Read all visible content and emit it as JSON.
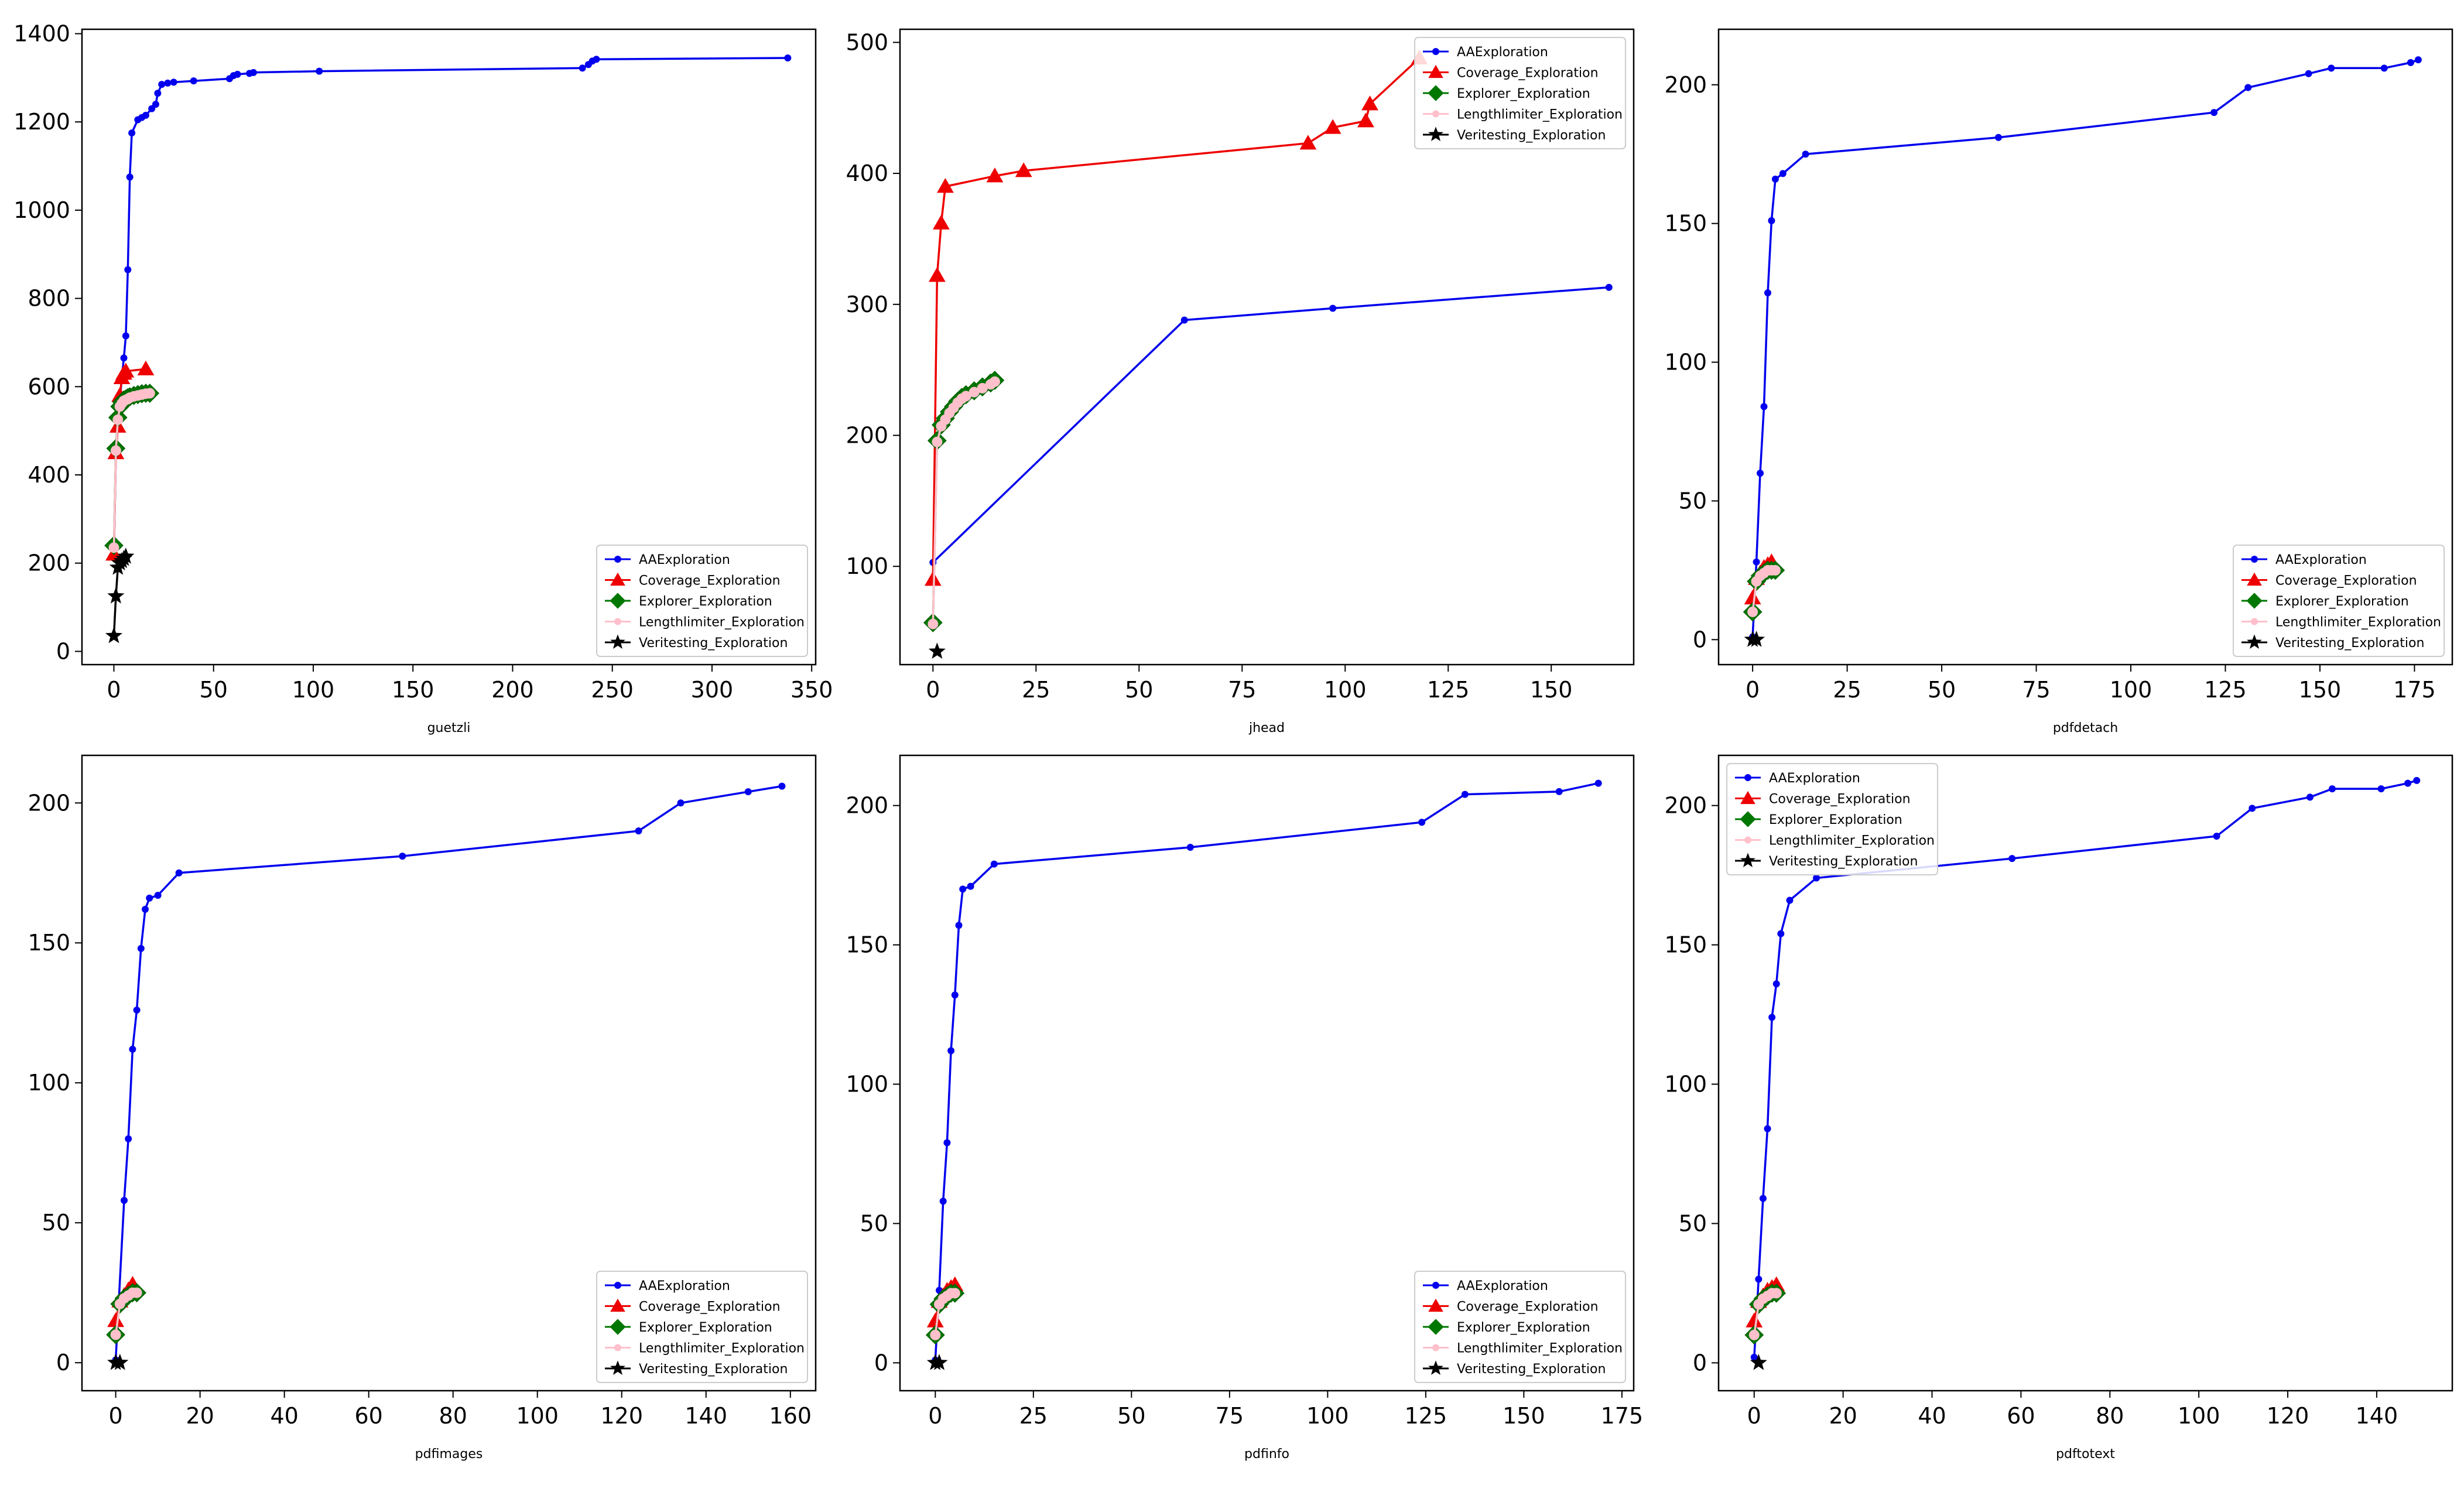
{
  "chart_data": [
    {
      "type": "line",
      "xlabel": "guetzli",
      "xlim": [
        -16,
        352
      ],
      "ylim": [
        -30,
        1410
      ],
      "xticks": [
        0,
        50,
        100,
        150,
        200,
        250,
        300,
        350
      ],
      "yticks": [
        0,
        200,
        400,
        600,
        800,
        1000,
        1200,
        1400
      ],
      "legend_loc": "lower-right",
      "series": [
        {
          "name": "AAExploration",
          "color": "#0000ee",
          "marker": "circle",
          "x": [
            0,
            1,
            2,
            3,
            4,
            5,
            6,
            7,
            8,
            9,
            12,
            14,
            16,
            19,
            21,
            22,
            24,
            27,
            30,
            40,
            58,
            60,
            62,
            68,
            70,
            103,
            235,
            238,
            240,
            242,
            338
          ],
          "y": [
            220,
            450,
            520,
            570,
            620,
            665,
            715,
            865,
            1075,
            1175,
            1205,
            1210,
            1215,
            1230,
            1240,
            1265,
            1285,
            1288,
            1290,
            1293,
            1298,
            1305,
            1308,
            1310,
            1312,
            1315,
            1322,
            1330,
            1338,
            1342,
            1345
          ]
        },
        {
          "name": "Coverage_Exploration",
          "color": "#ee0000",
          "marker": "triangle",
          "x": [
            0,
            1,
            2,
            3,
            4,
            5,
            6,
            16
          ],
          "y": [
            220,
            450,
            510,
            580,
            620,
            630,
            635,
            640
          ]
        },
        {
          "name": "Explorer_Exploration",
          "color": "#007700",
          "marker": "diamond",
          "x": [
            0,
            1,
            2,
            3,
            4,
            5,
            6,
            7,
            8,
            10,
            12,
            14,
            16,
            18
          ],
          "y": [
            240,
            460,
            530,
            555,
            565,
            570,
            572,
            575,
            577,
            580,
            582,
            584,
            585,
            585
          ]
        },
        {
          "name": "Lengthlimiter_Exploration",
          "color": "#ffc0cb",
          "marker": "circle",
          "x": [
            0,
            1,
            2,
            3,
            4,
            5,
            6,
            7,
            8,
            10,
            12,
            14,
            16,
            18
          ],
          "y": [
            235,
            455,
            525,
            555,
            562,
            568,
            570,
            572,
            575,
            578,
            580,
            582,
            584,
            585
          ]
        },
        {
          "name": "Veritesting_Exploration",
          "color": "#000000",
          "marker": "star",
          "x": [
            0,
            1,
            2,
            3,
            4,
            5,
            6
          ],
          "y": [
            35,
            125,
            190,
            200,
            205,
            210,
            215
          ]
        }
      ]
    },
    {
      "type": "line",
      "xlabel": "jhead",
      "xlim": [
        -8,
        170
      ],
      "ylim": [
        25,
        510
      ],
      "xticks": [
        0,
        25,
        50,
        75,
        100,
        125,
        150
      ],
      "yticks": [
        100,
        200,
        300,
        400,
        500
      ],
      "legend_loc": "upper-right",
      "series": [
        {
          "name": "AAExploration",
          "color": "#0000ee",
          "marker": "circle",
          "x": [
            0,
            61,
            97,
            164
          ],
          "y": [
            103,
            288,
            297,
            313
          ]
        },
        {
          "name": "Coverage_Exploration",
          "color": "#ee0000",
          "marker": "triangle",
          "x": [
            0,
            1,
            2,
            3,
            15,
            22,
            91,
            97,
            105,
            106,
            118
          ],
          "y": [
            90,
            322,
            362,
            390,
            398,
            402,
            423,
            435,
            440,
            453,
            488
          ]
        },
        {
          "name": "Explorer_Exploration",
          "color": "#007700",
          "marker": "diamond",
          "x": [
            0,
            1,
            2,
            3,
            4,
            5,
            6,
            7,
            8,
            10,
            12,
            14,
            15
          ],
          "y": [
            57,
            196,
            208,
            213,
            218,
            222,
            226,
            229,
            231,
            234,
            237,
            240,
            242
          ]
        },
        {
          "name": "Lengthlimiter_Exploration",
          "color": "#ffc0cb",
          "marker": "circle",
          "x": [
            0,
            1,
            2,
            3,
            4,
            5,
            6,
            7,
            8,
            10,
            12,
            14,
            15
          ],
          "y": [
            56,
            195,
            207,
            212,
            217,
            221,
            225,
            228,
            230,
            233,
            236,
            239,
            241
          ]
        },
        {
          "name": "Veritesting_Exploration",
          "color": "#000000",
          "marker": "star",
          "x": [
            1
          ],
          "y": [
            35
          ]
        }
      ]
    },
    {
      "type": "line",
      "xlabel": "pdfdetach",
      "xlim": [
        -9,
        185
      ],
      "ylim": [
        -9,
        220
      ],
      "xticks": [
        0,
        25,
        50,
        75,
        100,
        125,
        150,
        175
      ],
      "yticks": [
        0,
        50,
        100,
        150,
        200
      ],
      "legend_loc": "lower-right",
      "series": [
        {
          "name": "AAExploration",
          "color": "#0000ee",
          "marker": "circle",
          "x": [
            0,
            1,
            2,
            3,
            4,
            5,
            6,
            8,
            14,
            65,
            122,
            131,
            147,
            153,
            167,
            174,
            176
          ],
          "y": [
            1,
            28,
            60,
            84,
            125,
            151,
            166,
            168,
            175,
            181,
            190,
            199,
            204,
            206,
            206,
            208,
            209
          ]
        },
        {
          "name": "Coverage_Exploration",
          "color": "#ee0000",
          "marker": "triangle",
          "x": [
            0,
            1,
            2,
            3,
            4,
            5
          ],
          "y": [
            15,
            22,
            24,
            26,
            27,
            28
          ]
        },
        {
          "name": "Explorer_Exploration",
          "color": "#007700",
          "marker": "diamond",
          "x": [
            0,
            1,
            2,
            3,
            4,
            5,
            6
          ],
          "y": [
            10,
            21,
            23,
            24,
            25,
            25,
            25
          ]
        },
        {
          "name": "Lengthlimiter_Exploration",
          "color": "#ffc0cb",
          "marker": "circle",
          "x": [
            0,
            1,
            2,
            3,
            4,
            5,
            6
          ],
          "y": [
            10,
            21,
            23,
            24,
            25,
            25,
            25
          ]
        },
        {
          "name": "Veritesting_Exploration",
          "color": "#000000",
          "marker": "star",
          "x": [
            0,
            1
          ],
          "y": [
            0,
            0
          ]
        }
      ]
    },
    {
      "type": "line",
      "xlabel": "pdfimages",
      "xlim": [
        -8,
        166
      ],
      "ylim": [
        -10,
        217
      ],
      "xticks": [
        0,
        20,
        40,
        60,
        80,
        100,
        120,
        140,
        160
      ],
      "yticks": [
        0,
        50,
        100,
        150,
        200
      ],
      "legend_loc": "lower-right",
      "series": [
        {
          "name": "AAExploration",
          "color": "#0000ee",
          "marker": "circle",
          "x": [
            0,
            2,
            3,
            4,
            5,
            6,
            7,
            8,
            10,
            15,
            68,
            124,
            134,
            150,
            158
          ],
          "y": [
            1,
            58,
            80,
            112,
            126,
            148,
            162,
            166,
            167,
            175,
            181,
            190,
            200,
            204,
            206
          ]
        },
        {
          "name": "Coverage_Exploration",
          "color": "#ee0000",
          "marker": "triangle",
          "x": [
            0,
            1,
            2,
            3,
            4
          ],
          "y": [
            15,
            22,
            24,
            26,
            28
          ]
        },
        {
          "name": "Explorer_Exploration",
          "color": "#007700",
          "marker": "diamond",
          "x": [
            0,
            1,
            2,
            3,
            4,
            5
          ],
          "y": [
            10,
            21,
            23,
            24,
            25,
            25
          ]
        },
        {
          "name": "Lengthlimiter_Exploration",
          "color": "#ffc0cb",
          "marker": "circle",
          "x": [
            0,
            1,
            2,
            3,
            4,
            5
          ],
          "y": [
            10,
            21,
            23,
            24,
            25,
            25
          ]
        },
        {
          "name": "Veritesting_Exploration",
          "color": "#000000",
          "marker": "star",
          "x": [
            0,
            1
          ],
          "y": [
            0,
            0
          ]
        }
      ]
    },
    {
      "type": "line",
      "xlabel": "pdfinfo",
      "xlim": [
        -9,
        178
      ],
      "ylim": [
        -10,
        218
      ],
      "xticks": [
        0,
        25,
        50,
        75,
        100,
        125,
        150,
        175
      ],
      "yticks": [
        0,
        50,
        100,
        150,
        200
      ],
      "legend_loc": "lower-right",
      "series": [
        {
          "name": "AAExploration",
          "color": "#0000ee",
          "marker": "circle",
          "x": [
            0,
            1,
            2,
            3,
            4,
            5,
            6,
            7,
            9,
            15,
            65,
            124,
            135,
            159,
            169
          ],
          "y": [
            1,
            26,
            58,
            79,
            112,
            132,
            157,
            170,
            171,
            179,
            185,
            194,
            204,
            205,
            208
          ]
        },
        {
          "name": "Coverage_Exploration",
          "color": "#ee0000",
          "marker": "triangle",
          "x": [
            0,
            1,
            2,
            3,
            4,
            5
          ],
          "y": [
            15,
            22,
            24,
            26,
            27,
            28
          ]
        },
        {
          "name": "Explorer_Exploration",
          "color": "#007700",
          "marker": "diamond",
          "x": [
            0,
            1,
            2,
            3,
            4,
            5
          ],
          "y": [
            10,
            21,
            23,
            24,
            25,
            25
          ]
        },
        {
          "name": "Lengthlimiter_Exploration",
          "color": "#ffc0cb",
          "marker": "circle",
          "x": [
            0,
            1,
            2,
            3,
            4,
            5
          ],
          "y": [
            10,
            21,
            23,
            24,
            25,
            25
          ]
        },
        {
          "name": "Veritesting_Exploration",
          "color": "#000000",
          "marker": "star",
          "x": [
            0,
            1
          ],
          "y": [
            0,
            0
          ]
        }
      ]
    },
    {
      "type": "line",
      "xlabel": "pdftotext",
      "xlim": [
        -8,
        157
      ],
      "ylim": [
        -10,
        218
      ],
      "xticks": [
        0,
        20,
        40,
        60,
        80,
        100,
        120,
        140
      ],
      "yticks": [
        0,
        50,
        100,
        150,
        200
      ],
      "legend_loc": "upper-left",
      "series": [
        {
          "name": "AAExploration",
          "color": "#0000ee",
          "marker": "circle",
          "x": [
            0,
            1,
            2,
            3,
            4,
            5,
            6,
            8,
            14,
            58,
            104,
            112,
            125,
            130,
            141,
            147,
            149
          ],
          "y": [
            2,
            30,
            59,
            84,
            124,
            136,
            154,
            166,
            174,
            181,
            189,
            199,
            203,
            206,
            206,
            208,
            209
          ]
        },
        {
          "name": "Coverage_Exploration",
          "color": "#ee0000",
          "marker": "triangle",
          "x": [
            0,
            1,
            2,
            3,
            4,
            5
          ],
          "y": [
            15,
            22,
            24,
            26,
            27,
            28
          ]
        },
        {
          "name": "Explorer_Exploration",
          "color": "#007700",
          "marker": "diamond",
          "x": [
            0,
            1,
            2,
            3,
            4,
            5
          ],
          "y": [
            10,
            21,
            23,
            24,
            25,
            25
          ]
        },
        {
          "name": "Lengthlimiter_Exploration",
          "color": "#ffc0cb",
          "marker": "circle",
          "x": [
            0,
            1,
            2,
            3,
            4,
            5
          ],
          "y": [
            10,
            21,
            23,
            24,
            25,
            25
          ]
        },
        {
          "name": "Veritesting_Exploration",
          "color": "#000000",
          "marker": "star",
          "x": [
            1
          ],
          "y": [
            0
          ]
        }
      ]
    }
  ]
}
